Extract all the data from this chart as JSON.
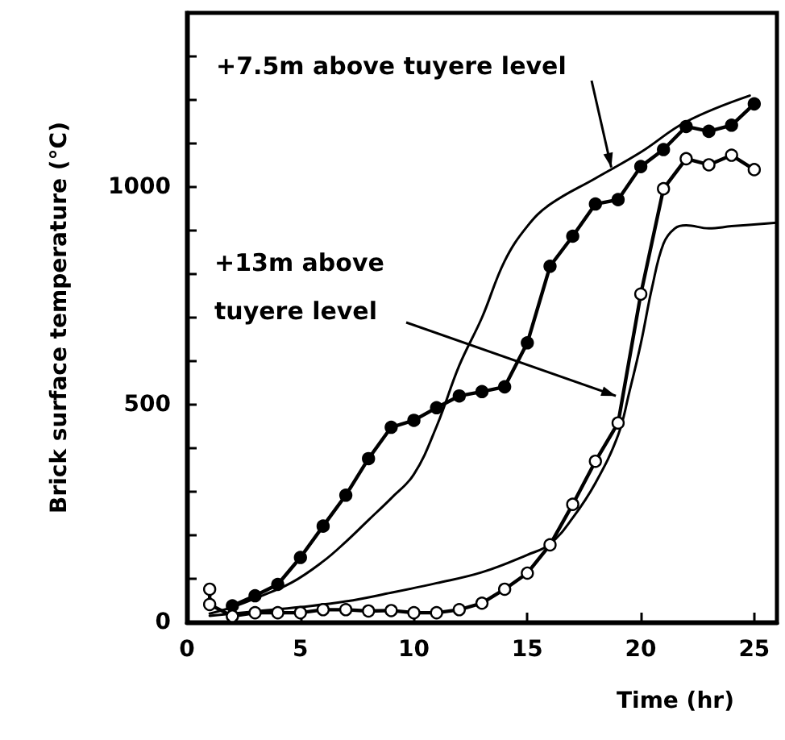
{
  "chart_data": {
    "type": "line",
    "xlabel": "Time (hr)",
    "ylabel": "Brick surface temperature (°C)",
    "xlim": [
      0,
      26
    ],
    "xticks": [
      0,
      5,
      10,
      15,
      20,
      25
    ],
    "ylim": [
      0,
      1400
    ],
    "yticks": [
      0,
      {
        "value": 100,
        "label": null
      },
      {
        "value": 200,
        "label": null
      },
      {
        "value": 300,
        "label": null
      },
      {
        "value": 400,
        "label": null
      },
      500,
      {
        "value": 600,
        "label": null
      },
      {
        "value": 700,
        "label": null
      },
      {
        "value": 800,
        "label": null
      },
      {
        "value": 900,
        "label": null
      },
      1000,
      {
        "value": 1100,
        "label": null
      },
      {
        "value": 1200,
        "label": null
      },
      {
        "value": 1300,
        "label": null
      }
    ],
    "grid": false,
    "series": [
      {
        "color": "#000000",
        "marker": "circle",
        "x": [
          2,
          3,
          4,
          5,
          6,
          7,
          8,
          9,
          10,
          11,
          12,
          13,
          14,
          15,
          16,
          17,
          18,
          19,
          20,
          21,
          22,
          23,
          24,
          25
        ],
        "values": [
          38,
          61,
          87,
          149,
          221,
          292,
          376,
          448,
          464,
          493,
          520,
          530,
          541,
          642,
          818,
          887,
          961,
          971,
          1047,
          1086,
          1139,
          1128,
          1142,
          1191
        ]
      },
      {
        "color": "#ffffff",
        "marker": "circle",
        "x": [
          1,
          1,
          2,
          3,
          4,
          5,
          6,
          7,
          8,
          9,
          10,
          11,
          12,
          13,
          14,
          15,
          16,
          17,
          18,
          19,
          20,
          21,
          22,
          23,
          24,
          25
        ],
        "values": [
          76,
          41,
          14,
          22,
          22,
          22,
          29,
          29,
          26,
          27,
          22,
          22,
          29,
          44,
          76,
          113,
          178,
          271,
          370,
          458,
          754,
          996,
          1065,
          1051,
          1073,
          1040
        ]
      },
      {
        "color": "#000000",
        "marker": "none",
        "x": [
          1,
          2,
          3,
          4.6,
          6,
          7,
          8,
          9,
          10,
          11,
          12,
          13,
          14,
          15,
          16,
          18,
          20,
          22,
          24.8
        ],
        "values": [
          20,
          35,
          55,
          91,
          140,
          185,
          235,
          285,
          340,
          450,
          590,
          700,
          830,
          910,
          960,
          1020,
          1080,
          1150,
          1210
        ]
      },
      {
        "color": "#000000",
        "marker": "none",
        "x": [
          1,
          3,
          5,
          7,
          9,
          11,
          13,
          15,
          16,
          17,
          18,
          19,
          19.5,
          20,
          20.5,
          21,
          21.5,
          22,
          23,
          24,
          26
        ],
        "values": [
          15,
          25,
          35,
          48,
          68,
          90,
          115,
          155,
          180,
          240,
          320,
          430,
          530,
          640,
          770,
          870,
          905,
          912,
          905,
          910,
          918
        ]
      }
    ],
    "annotations": [
      {
        "text": "+7.5m above tuyere level",
        "x": 18.7,
        "y": 1045
      },
      {
        "text": "+13m above\ntuyere level",
        "x": 18.9,
        "y": 520
      }
    ]
  }
}
